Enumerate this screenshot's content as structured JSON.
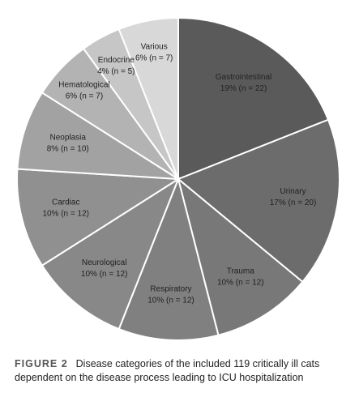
{
  "chart_data": {
    "type": "pie",
    "categories": [
      "Gastrointestinal",
      "Urinary",
      "Trauma",
      "Respiratory",
      "Neurological",
      "Cardiac",
      "Neoplasia",
      "Hematological",
      "Endocrine",
      "Various"
    ],
    "values": [
      19,
      17,
      10,
      10,
      10,
      10,
      8,
      6,
      4,
      6
    ],
    "value_labels": [
      "19% (n = 22)",
      "17% (n = 20)",
      "10% (n = 12)",
      "10% (n = 12)",
      "10% (n = 12)",
      "10% (n = 12)",
      "8% (n = 10)",
      "6% (n = 7)",
      "4% (n = 5)",
      "6% (n = 7)"
    ],
    "colors": [
      "#5a5a5a",
      "#6c6c6c",
      "#787878",
      "#808080",
      "#888888",
      "#909090",
      "#a2a2a2",
      "#b3b3b3",
      "#c6c6c6",
      "#d8d8d8"
    ]
  },
  "caption": {
    "figure_label": "FIGURE 2",
    "text": "Disease categories of the included 119 critically ill cats dependent on the disease process leading to ICU hospitalization"
  }
}
